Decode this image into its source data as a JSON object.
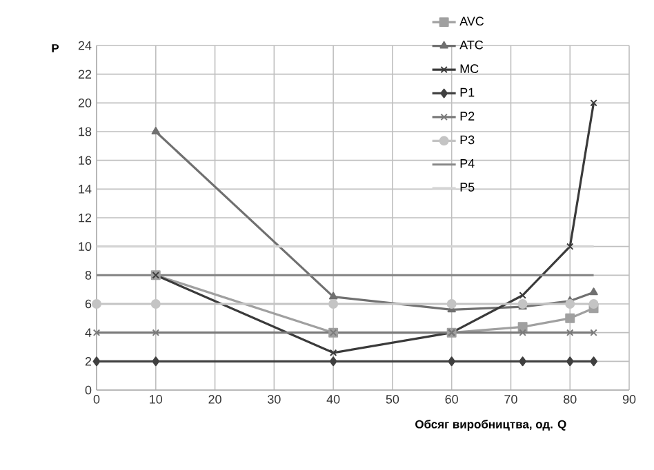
{
  "chart_data": {
    "type": "line",
    "xlabel": "Обсяг виробництва, од. Q",
    "ylabel": "P",
    "xlim": [
      0,
      90
    ],
    "xticks": [
      0,
      10,
      20,
      30,
      40,
      50,
      60,
      70,
      80,
      90
    ],
    "ylim": [
      0,
      24
    ],
    "yticks": [
      0,
      2,
      4,
      6,
      8,
      10,
      12,
      14,
      16,
      18,
      20,
      22,
      24
    ],
    "grid": true,
    "legend": "top right",
    "series": [
      {
        "name": "AVC",
        "color": "#a0a0a0",
        "marker": "square",
        "x": [
          10,
          40,
          60,
          72,
          80,
          84
        ],
        "values": [
          8,
          4,
          4,
          4.4,
          5,
          5.7
        ]
      },
      {
        "name": "ATC",
        "color": "#707070",
        "marker": "triangle",
        "x": [
          10,
          40,
          60,
          72,
          80,
          84
        ],
        "values": [
          18,
          6.5,
          5.6,
          5.8,
          6.2,
          6.8
        ]
      },
      {
        "name": "MC",
        "color": "#3a3a3a",
        "marker": "cross",
        "x": [
          10,
          40,
          60,
          72,
          80,
          84
        ],
        "values": [
          8,
          2.6,
          4,
          6.6,
          10,
          20
        ]
      },
      {
        "name": "P1",
        "color": "#404040",
        "marker": "diamond",
        "x": [
          0,
          10,
          40,
          60,
          72,
          80,
          84
        ],
        "values": [
          2,
          2,
          2,
          2,
          2,
          2,
          2
        ]
      },
      {
        "name": "P2",
        "color": "#7a7a7a",
        "marker": "cross",
        "x": [
          0,
          10,
          40,
          60,
          72,
          80,
          84
        ],
        "values": [
          4,
          4,
          4,
          4,
          4,
          4,
          4
        ]
      },
      {
        "name": "P3",
        "color": "#c4c4c4",
        "marker": "circle",
        "x": [
          0,
          10,
          40,
          60,
          72,
          80,
          84
        ],
        "values": [
          6,
          6,
          6,
          6,
          6,
          6,
          6
        ]
      },
      {
        "name": "P4",
        "color": "#888888",
        "marker": "none",
        "x": [
          0,
          10,
          40,
          60,
          72,
          80,
          84
        ],
        "values": [
          8,
          8,
          8,
          8,
          8,
          8,
          8
        ]
      },
      {
        "name": "P5",
        "color": "#d4d4d4",
        "marker": "none",
        "x": [
          0,
          10,
          40,
          60,
          72,
          80,
          84
        ],
        "values": [
          10,
          10,
          10,
          10,
          10,
          10,
          10
        ]
      }
    ]
  }
}
